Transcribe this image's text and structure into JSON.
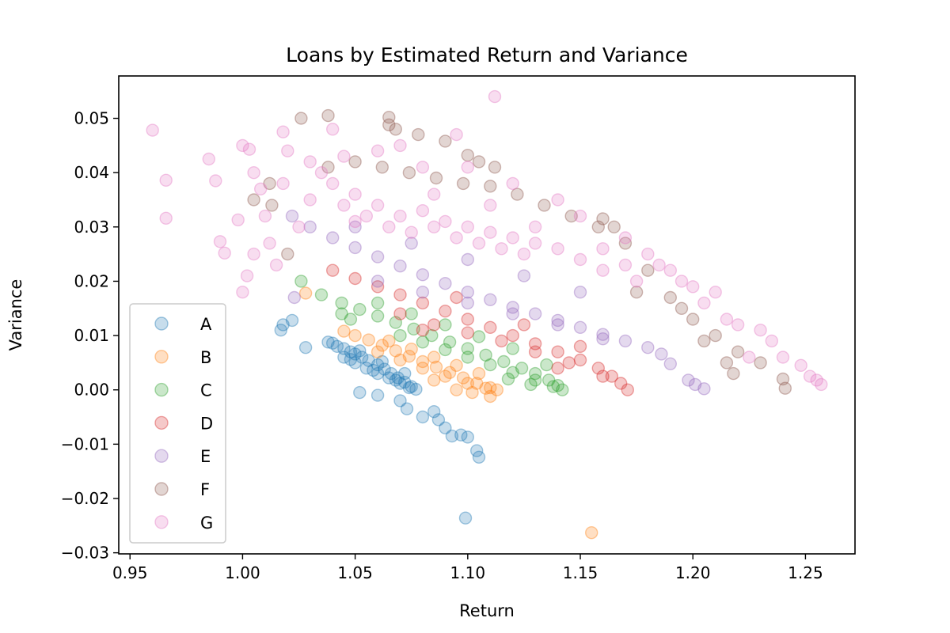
{
  "chart_data": {
    "type": "scatter",
    "title": "Loans by Estimated Return and Variance",
    "xlabel": "Return",
    "ylabel": "Variance",
    "xlim": [
      0.945,
      1.272
    ],
    "ylim": [
      -0.0302,
      0.0578
    ],
    "xticks": [
      0.95,
      1.0,
      1.05,
      1.1,
      1.15,
      1.2,
      1.25
    ],
    "xtick_labels": [
      "0.95",
      "1.00",
      "1.05",
      "1.10",
      "1.15",
      "1.20",
      "1.25"
    ],
    "yticks": [
      -0.03,
      -0.02,
      -0.01,
      0.0,
      0.01,
      0.02,
      0.03,
      0.04,
      0.05
    ],
    "ytick_labels": [
      "−0.03",
      "−0.02",
      "−0.01",
      "0.00",
      "0.01",
      "0.02",
      "0.03",
      "0.04",
      "0.05"
    ],
    "grid": false,
    "legend_position": "lower-left",
    "marker": "circle",
    "alpha": 0.25,
    "series": [
      {
        "name": "A",
        "color": "#1f77b4",
        "points": [
          [
            1.038,
            0.0088
          ],
          [
            1.04,
            0.0086
          ],
          [
            1.042,
            0.008
          ],
          [
            1.045,
            0.0076
          ],
          [
            1.048,
            0.007
          ],
          [
            1.05,
            0.0066
          ],
          [
            1.053,
            0.006
          ],
          [
            1.056,
            0.0054
          ],
          [
            1.06,
            0.0046
          ],
          [
            1.063,
            0.0038
          ],
          [
            1.066,
            0.003
          ],
          [
            1.069,
            0.0022
          ],
          [
            1.072,
            0.0014
          ],
          [
            1.075,
            0.0006
          ],
          [
            1.077,
            0.0001
          ],
          [
            1.045,
            0.006
          ],
          [
            1.05,
            0.005
          ],
          [
            1.055,
            0.004
          ],
          [
            1.06,
            0.003
          ],
          [
            1.065,
            0.0022
          ],
          [
            1.07,
            0.0012
          ],
          [
            1.074,
            0.0004
          ],
          [
            1.048,
            0.0056
          ],
          [
            1.058,
            0.0036
          ],
          [
            1.068,
            0.0018
          ],
          [
            1.052,
            0.0072
          ],
          [
            1.062,
            0.0052
          ],
          [
            1.072,
            0.003
          ],
          [
            1.018,
            0.012
          ],
          [
            1.017,
            0.011
          ],
          [
            1.022,
            0.0128
          ],
          [
            1.028,
            0.0078
          ],
          [
            1.052,
            -0.0005
          ],
          [
            1.06,
            -0.001
          ],
          [
            1.07,
            -0.002
          ],
          [
            1.073,
            -0.0035
          ],
          [
            1.08,
            -0.005
          ],
          [
            1.085,
            -0.004
          ],
          [
            1.087,
            -0.0055
          ],
          [
            1.09,
            -0.007
          ],
          [
            1.093,
            -0.0085
          ],
          [
            1.097,
            -0.0083
          ],
          [
            1.1,
            -0.0087
          ],
          [
            1.104,
            -0.0112
          ],
          [
            1.105,
            -0.0124
          ],
          [
            1.099,
            -0.0236
          ]
        ]
      },
      {
        "name": "B",
        "color": "#ff7f0e",
        "points": [
          [
            1.045,
            0.0108
          ],
          [
            1.05,
            0.01
          ],
          [
            1.056,
            0.0092
          ],
          [
            1.062,
            0.0082
          ],
          [
            1.068,
            0.0072
          ],
          [
            1.074,
            0.0062
          ],
          [
            1.08,
            0.0052
          ],
          [
            1.086,
            0.0042
          ],
          [
            1.092,
            0.0032
          ],
          [
            1.098,
            0.0022
          ],
          [
            1.104,
            0.0012
          ],
          [
            1.11,
            0.0004
          ],
          [
            1.113,
            0.0
          ],
          [
            1.06,
            0.007
          ],
          [
            1.07,
            0.0055
          ],
          [
            1.08,
            0.004
          ],
          [
            1.09,
            0.0025
          ],
          [
            1.1,
            0.0012
          ],
          [
            1.108,
            0.0003
          ],
          [
            1.065,
            0.009
          ],
          [
            1.075,
            0.0075
          ],
          [
            1.085,
            0.006
          ],
          [
            1.095,
            0.0045
          ],
          [
            1.105,
            0.003
          ],
          [
            1.028,
            0.0178
          ],
          [
            1.085,
            0.0018
          ],
          [
            1.095,
            0.0
          ],
          [
            1.102,
            -0.0005
          ],
          [
            1.11,
            -0.0012
          ],
          [
            1.155,
            -0.0263
          ]
        ]
      },
      {
        "name": "C",
        "color": "#2ca02c",
        "points": [
          [
            1.026,
            0.02
          ],
          [
            1.035,
            0.0175
          ],
          [
            1.044,
            0.016
          ],
          [
            1.052,
            0.0148
          ],
          [
            1.06,
            0.0136
          ],
          [
            1.068,
            0.0124
          ],
          [
            1.076,
            0.0112
          ],
          [
            1.084,
            0.01
          ],
          [
            1.092,
            0.0088
          ],
          [
            1.1,
            0.0076
          ],
          [
            1.108,
            0.0064
          ],
          [
            1.116,
            0.0052
          ],
          [
            1.124,
            0.004
          ],
          [
            1.13,
            0.003
          ],
          [
            1.136,
            0.0018
          ],
          [
            1.14,
            0.0008
          ],
          [
            1.142,
            0.0
          ],
          [
            1.07,
            0.01
          ],
          [
            1.08,
            0.0088
          ],
          [
            1.09,
            0.0074
          ],
          [
            1.1,
            0.006
          ],
          [
            1.11,
            0.0046
          ],
          [
            1.12,
            0.0032
          ],
          [
            1.13,
            0.0018
          ],
          [
            1.138,
            0.0006
          ],
          [
            1.06,
            0.016
          ],
          [
            1.075,
            0.014
          ],
          [
            1.09,
            0.012
          ],
          [
            1.105,
            0.0098
          ],
          [
            1.12,
            0.0076
          ],
          [
            1.135,
            0.0046
          ],
          [
            1.044,
            0.014
          ],
          [
            1.048,
            0.013
          ],
          [
            1.118,
            0.002
          ],
          [
            1.128,
            0.001
          ]
        ]
      },
      {
        "name": "D",
        "color": "#d62728",
        "points": [
          [
            1.04,
            0.022
          ],
          [
            1.05,
            0.0205
          ],
          [
            1.06,
            0.019
          ],
          [
            1.07,
            0.0175
          ],
          [
            1.08,
            0.016
          ],
          [
            1.09,
            0.0145
          ],
          [
            1.1,
            0.013
          ],
          [
            1.11,
            0.0115
          ],
          [
            1.12,
            0.01
          ],
          [
            1.13,
            0.0085
          ],
          [
            1.14,
            0.007
          ],
          [
            1.15,
            0.0055
          ],
          [
            1.158,
            0.004
          ],
          [
            1.164,
            0.0025
          ],
          [
            1.168,
            0.0012
          ],
          [
            1.171,
            0.0
          ],
          [
            1.085,
            0.012
          ],
          [
            1.1,
            0.0105
          ],
          [
            1.115,
            0.009
          ],
          [
            1.13,
            0.007
          ],
          [
            1.145,
            0.005
          ],
          [
            1.16,
            0.0025
          ],
          [
            1.07,
            0.014
          ],
          [
            1.095,
            0.017
          ],
          [
            1.125,
            0.012
          ],
          [
            1.15,
            0.008
          ],
          [
            1.08,
            0.011
          ],
          [
            1.14,
            0.004
          ]
        ]
      },
      {
        "name": "E",
        "color": "#9467bd",
        "points": [
          [
            1.022,
            0.032
          ],
          [
            1.03,
            0.03
          ],
          [
            1.04,
            0.028
          ],
          [
            1.05,
            0.0262
          ],
          [
            1.06,
            0.0245
          ],
          [
            1.07,
            0.0228
          ],
          [
            1.08,
            0.0212
          ],
          [
            1.09,
            0.0196
          ],
          [
            1.1,
            0.018
          ],
          [
            1.11,
            0.0166
          ],
          [
            1.12,
            0.0152
          ],
          [
            1.13,
            0.014
          ],
          [
            1.14,
            0.0128
          ],
          [
            1.15,
            0.0115
          ],
          [
            1.16,
            0.0102
          ],
          [
            1.17,
            0.009
          ],
          [
            1.18,
            0.0078
          ],
          [
            1.186,
            0.0066
          ],
          [
            1.19,
            0.0048
          ],
          [
            1.06,
            0.02
          ],
          [
            1.08,
            0.018
          ],
          [
            1.1,
            0.016
          ],
          [
            1.12,
            0.014
          ],
          [
            1.14,
            0.012
          ],
          [
            1.16,
            0.0094
          ],
          [
            1.05,
            0.03
          ],
          [
            1.075,
            0.027
          ],
          [
            1.1,
            0.024
          ],
          [
            1.125,
            0.021
          ],
          [
            1.15,
            0.018
          ],
          [
            1.023,
            0.017
          ],
          [
            1.198,
            0.0018
          ],
          [
            1.201,
            0.001
          ],
          [
            1.205,
            0.0002
          ]
        ]
      },
      {
        "name": "F",
        "color": "#8c564b",
        "points": [
          [
            1.038,
            0.041
          ],
          [
            1.05,
            0.042
          ],
          [
            1.062,
            0.041
          ],
          [
            1.074,
            0.04
          ],
          [
            1.086,
            0.039
          ],
          [
            1.098,
            0.038
          ],
          [
            1.11,
            0.0375
          ],
          [
            1.122,
            0.036
          ],
          [
            1.134,
            0.034
          ],
          [
            1.146,
            0.032
          ],
          [
            1.158,
            0.03
          ],
          [
            1.17,
            0.027
          ],
          [
            1.18,
            0.022
          ],
          [
            1.19,
            0.017
          ],
          [
            1.2,
            0.013
          ],
          [
            1.21,
            0.01
          ],
          [
            1.22,
            0.007
          ],
          [
            1.23,
            0.005
          ],
          [
            1.24,
            0.002
          ],
          [
            1.241,
            0.0003
          ],
          [
            1.026,
            0.05
          ],
          [
            1.038,
            0.0505
          ],
          [
            1.065,
            0.0502
          ],
          [
            1.065,
            0.0488
          ],
          [
            1.068,
            0.048
          ],
          [
            1.078,
            0.047
          ],
          [
            1.09,
            0.0458
          ],
          [
            1.1,
            0.0432
          ],
          [
            1.105,
            0.042
          ],
          [
            1.112,
            0.041
          ],
          [
            1.16,
            0.0315
          ],
          [
            1.165,
            0.03
          ],
          [
            1.175,
            0.018
          ],
          [
            1.195,
            0.015
          ],
          [
            1.205,
            0.009
          ],
          [
            1.215,
            0.005
          ],
          [
            1.218,
            0.003
          ],
          [
            1.005,
            0.035
          ],
          [
            1.012,
            0.038
          ],
          [
            1.02,
            0.025
          ],
          [
            1.013,
            0.034
          ]
        ]
      },
      {
        "name": "G",
        "color": "#e377c2",
        "points": [
          [
            0.96,
            0.0478
          ],
          [
            0.966,
            0.0386
          ],
          [
            0.966,
            0.0316
          ],
          [
            0.985,
            0.0425
          ],
          [
            0.988,
            0.0385
          ],
          [
            0.99,
            0.0273
          ],
          [
            0.992,
            0.0252
          ],
          [
            0.998,
            0.0313
          ],
          [
            1.0,
            0.045
          ],
          [
            1.003,
            0.0443
          ],
          [
            1.005,
            0.04
          ],
          [
            1.008,
            0.037
          ],
          [
            1.01,
            0.032
          ],
          [
            1.012,
            0.027
          ],
          [
            1.015,
            0.023
          ],
          [
            1.018,
            0.038
          ],
          [
            1.02,
            0.044
          ],
          [
            1.025,
            0.03
          ],
          [
            1.03,
            0.035
          ],
          [
            1.035,
            0.04
          ],
          [
            1.04,
            0.038
          ],
          [
            1.045,
            0.034
          ],
          [
            1.05,
            0.036
          ],
          [
            1.055,
            0.032
          ],
          [
            1.06,
            0.034
          ],
          [
            1.065,
            0.03
          ],
          [
            1.07,
            0.032
          ],
          [
            1.075,
            0.029
          ],
          [
            1.08,
            0.033
          ],
          [
            1.085,
            0.03
          ],
          [
            1.09,
            0.031
          ],
          [
            1.095,
            0.028
          ],
          [
            1.1,
            0.03
          ],
          [
            1.105,
            0.027
          ],
          [
            1.11,
            0.029
          ],
          [
            1.115,
            0.026
          ],
          [
            1.12,
            0.028
          ],
          [
            1.125,
            0.025
          ],
          [
            1.13,
            0.027
          ],
          [
            1.14,
            0.026
          ],
          [
            1.15,
            0.024
          ],
          [
            1.16,
            0.022
          ],
          [
            1.17,
            0.023
          ],
          [
            1.18,
            0.025
          ],
          [
            1.19,
            0.022
          ],
          [
            1.195,
            0.02
          ],
          [
            1.2,
            0.019
          ],
          [
            1.21,
            0.018
          ],
          [
            1.215,
            0.013
          ],
          [
            1.22,
            0.012
          ],
          [
            1.23,
            0.011
          ],
          [
            1.235,
            0.009
          ],
          [
            1.24,
            0.006
          ],
          [
            1.248,
            0.0045
          ],
          [
            1.252,
            0.0025
          ],
          [
            1.255,
            0.0018
          ],
          [
            1.257,
            0.001
          ],
          [
            1.112,
            0.054
          ],
          [
            1.095,
            0.047
          ],
          [
            1.07,
            0.045
          ],
          [
            1.045,
            0.043
          ],
          [
            1.03,
            0.042
          ],
          [
            1.018,
            0.0475
          ],
          [
            1.04,
            0.048
          ],
          [
            1.06,
            0.044
          ],
          [
            1.08,
            0.041
          ],
          [
            1.1,
            0.041
          ],
          [
            1.12,
            0.038
          ],
          [
            1.14,
            0.035
          ],
          [
            1.15,
            0.032
          ],
          [
            1.17,
            0.028
          ],
          [
            1.185,
            0.023
          ],
          [
            1.205,
            0.016
          ],
          [
            1.225,
            0.006
          ],
          [
            1.0,
            0.018
          ],
          [
            1.002,
            0.021
          ],
          [
            1.005,
            0.025
          ],
          [
            1.05,
            0.031
          ],
          [
            1.085,
            0.036
          ],
          [
            1.11,
            0.034
          ],
          [
            1.13,
            0.03
          ],
          [
            1.16,
            0.026
          ],
          [
            1.175,
            0.02
          ]
        ]
      }
    ]
  }
}
